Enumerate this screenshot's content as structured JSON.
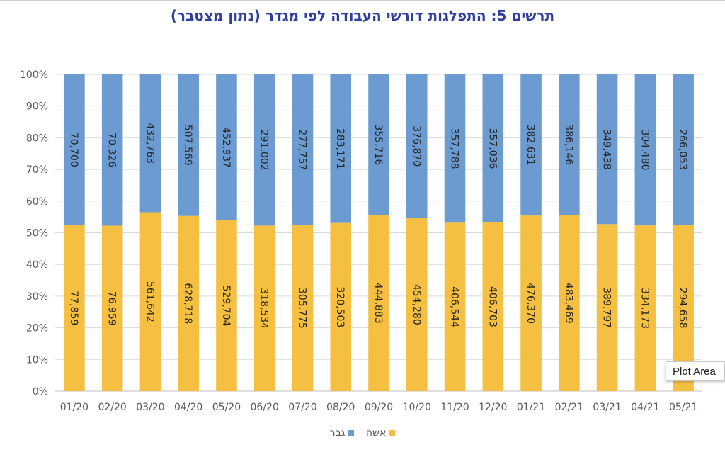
{
  "title": "תרשים 5: התפלגות דורשי העבודה לפי מגדר (נתון מצטבר)",
  "tooltip": "Plot Area",
  "colors": {
    "woman": "#f5bf42",
    "man": "#6b9bd1",
    "grid": "#d9d9d9",
    "axis_text": "#595959",
    "label_text": "#262626"
  },
  "chart_data": {
    "type": "bar",
    "stacked": "percent",
    "categories": [
      "01/20",
      "02/20",
      "03/20",
      "04/20",
      "05/20",
      "06/20",
      "07/20",
      "08/20",
      "09/20",
      "10/20",
      "11/20",
      "12/20",
      "01/21",
      "02/21",
      "03/21",
      "04/21",
      "05/21"
    ],
    "series": [
      {
        "name": "אשה",
        "values": [
          77859,
          76959,
          561642,
          628718,
          529704,
          318534,
          305775,
          320503,
          444883,
          454280,
          406544,
          406703,
          476370,
          483469,
          389797,
          334173,
          294658
        ],
        "labels": [
          "77,859",
          "76,959",
          "561,642",
          "628,718",
          "529,704",
          "318,534",
          "305,775",
          "320,503",
          "444,883",
          "454,280",
          "406,544",
          "406,703",
          "476,370",
          "483,469",
          "389,797",
          "334,173",
          "294,658"
        ]
      },
      {
        "name": "גבר",
        "values": [
          70700,
          70326,
          432763,
          507569,
          452937,
          291002,
          277757,
          283171,
          355716,
          376870,
          357788,
          357036,
          382631,
          386146,
          349438,
          304480,
          266053
        ],
        "labels": [
          "70,700",
          "70,326",
          "432,763",
          "507,569",
          "452,937",
          "291,002",
          "277,757",
          "283,171",
          "355,716",
          "376,870",
          "357,788",
          "357,036",
          "382,631",
          "386,146",
          "349,438",
          "304,480",
          "266,053"
        ]
      }
    ],
    "y_ticks": [
      "0%",
      "10%",
      "20%",
      "30%",
      "40%",
      "50%",
      "60%",
      "70%",
      "80%",
      "90%",
      "100%"
    ],
    "ylim": [
      0,
      100
    ],
    "grid": true,
    "legend_position": "bottom"
  }
}
